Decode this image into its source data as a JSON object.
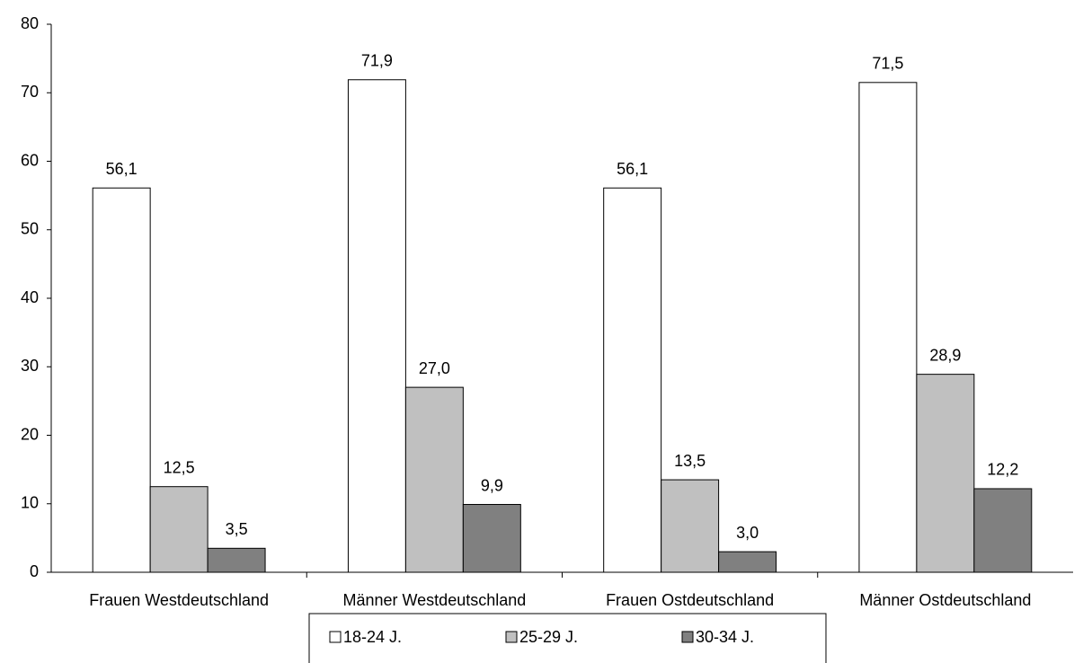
{
  "chart_data": {
    "type": "bar",
    "categories": [
      "Frauen Westdeutschland",
      "Männer Westdeutschland",
      "Frauen Ostdeutschland",
      "Männer Ostdeutschland"
    ],
    "series": [
      {
        "name": "18-24 J.",
        "color": "#ffffff",
        "values": [
          56.1,
          71.9,
          56.1,
          71.5
        ],
        "value_labels": [
          "56,1",
          "71,9",
          "56,1",
          "71,5"
        ]
      },
      {
        "name": "25-29 J.",
        "color": "#c0c0c0",
        "values": [
          12.5,
          27.0,
          13.5,
          28.9
        ],
        "value_labels": [
          "12,5",
          "27,0",
          "13,5",
          "28,9"
        ]
      },
      {
        "name": "30-34 J.",
        "color": "#808080",
        "values": [
          3.5,
          9.9,
          3.0,
          12.2
        ],
        "value_labels": [
          "3,5",
          "9,9",
          "3,0",
          "12,2"
        ]
      }
    ],
    "ylim": [
      0,
      80
    ],
    "yticks": [
      0,
      10,
      20,
      30,
      40,
      50,
      60,
      70,
      80
    ],
    "grid": false,
    "legend": "bottom"
  }
}
